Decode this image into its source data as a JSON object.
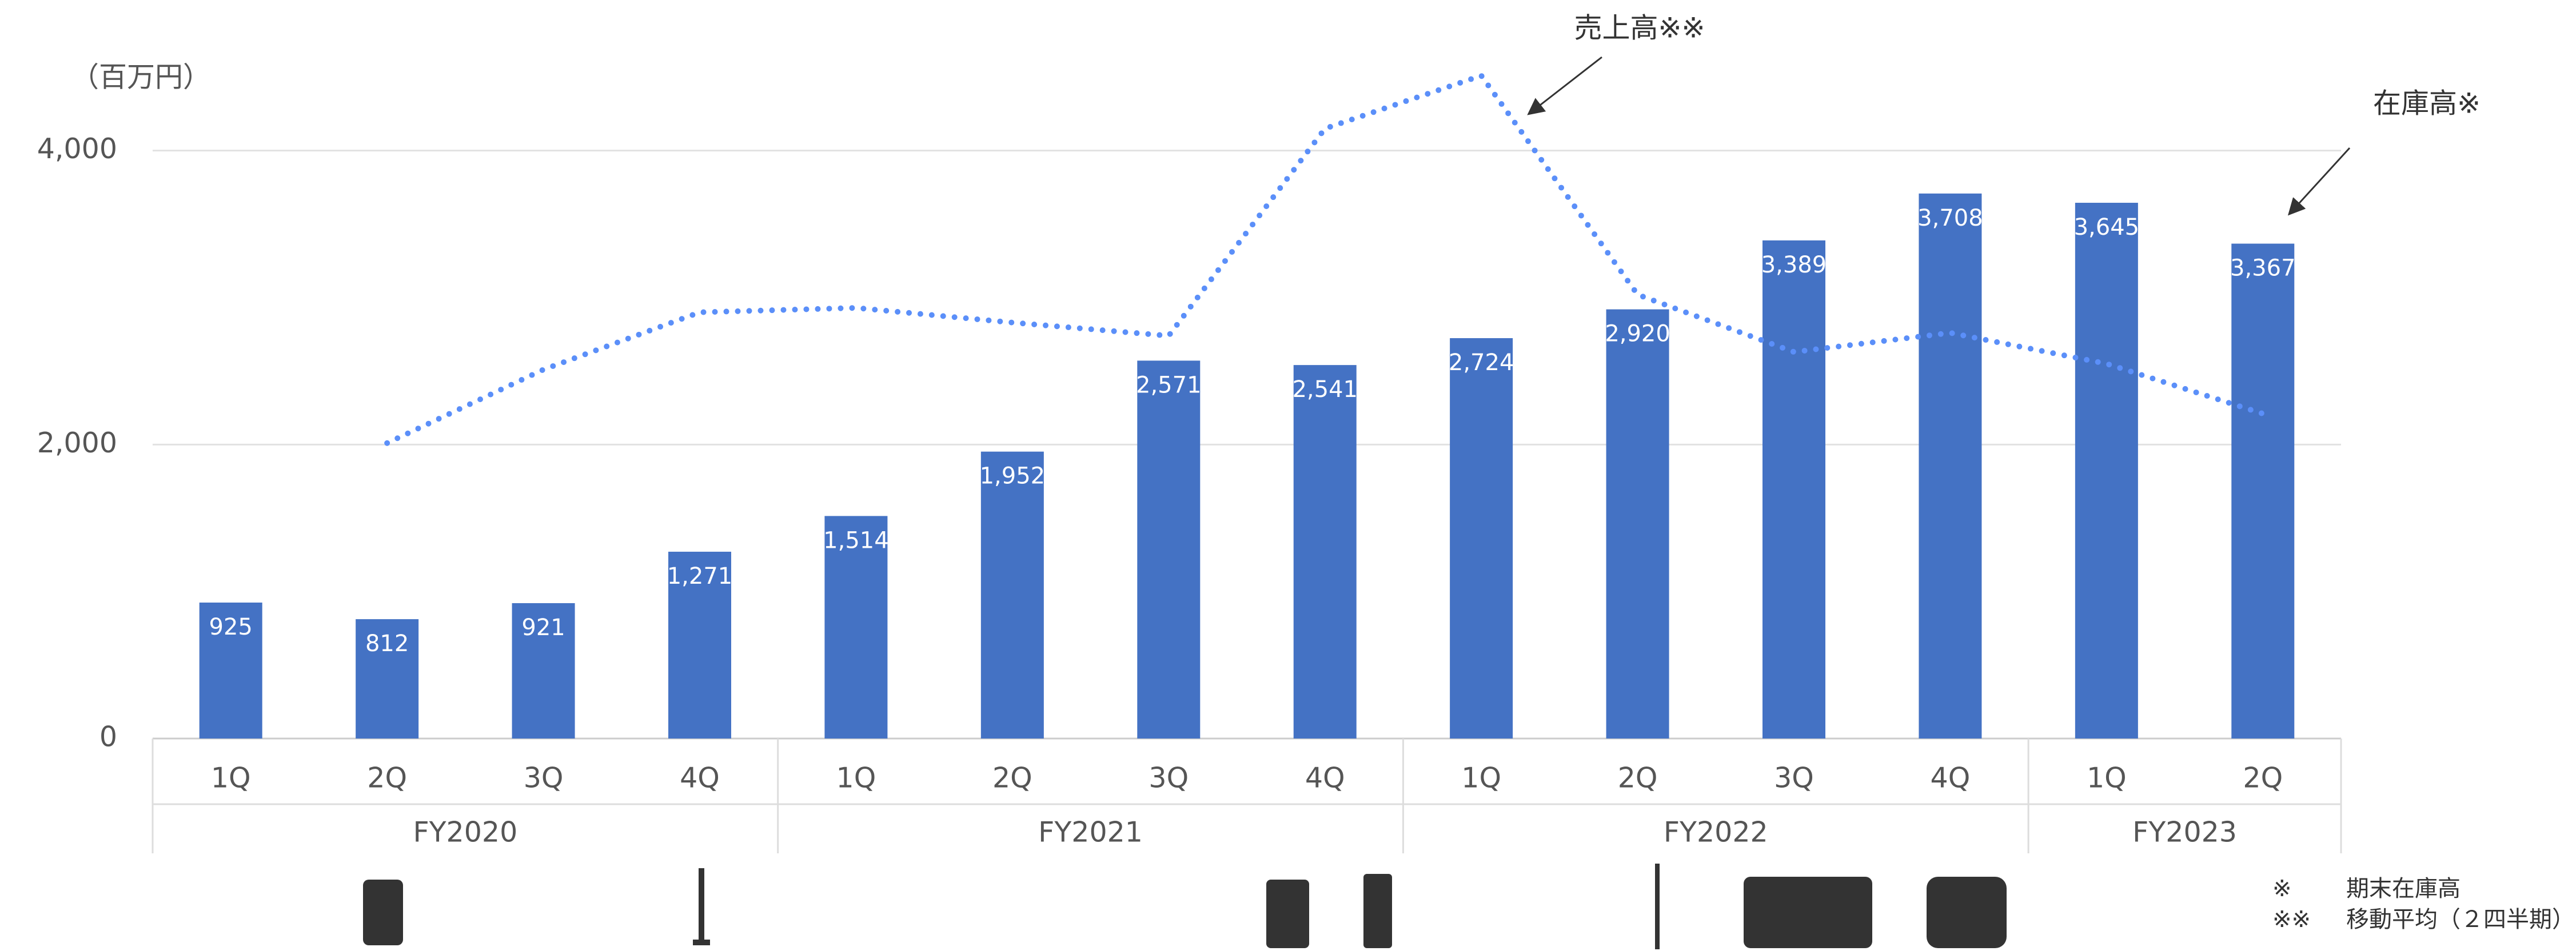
{
  "chart_data": {
    "type": "bar",
    "unit_label": "（百万円）",
    "groups": [
      {
        "name": "FY2020",
        "categories": [
          "1Q",
          "2Q",
          "3Q",
          "4Q"
        ]
      },
      {
        "name": "FY2021",
        "categories": [
          "1Q",
          "2Q",
          "3Q",
          "4Q"
        ]
      },
      {
        "name": "FY2022",
        "categories": [
          "1Q",
          "2Q",
          "3Q",
          "4Q"
        ]
      },
      {
        "name": "FY2023",
        "categories": [
          "1Q",
          "2Q"
        ]
      }
    ],
    "series": [
      {
        "name": "在庫高※",
        "type": "bar",
        "color": "#4472c4",
        "values": [
          925,
          812,
          921,
          1271,
          1514,
          1952,
          2571,
          2541,
          2724,
          2920,
          3389,
          3708,
          3645,
          3367
        ],
        "value_labels": [
          "925",
          "812",
          "921",
          "1,271",
          "1,514",
          "1,952",
          "2,571",
          "2,541",
          "2,724",
          "2,920",
          "3,389",
          "3,708",
          "3,645",
          "3,367"
        ]
      },
      {
        "name": "売上高※※",
        "type": "line",
        "color": "#5b8ff9",
        "values": [
          null,
          2010,
          2510,
          2900,
          2930,
          2830,
          2740,
          4150,
          4510,
          3020,
          2630,
          2760,
          2550,
          2210
        ]
      }
    ],
    "ylim": [
      0,
      4500
    ],
    "yticks": [
      0,
      {
        "value": 2000,
        "label": "2,000"
      },
      {
        "value": 4000,
        "label": "4,000"
      }
    ],
    "grid": true,
    "footnotes": [
      {
        "mark": "※",
        "text": "期末在庫高"
      },
      {
        "mark": "※※",
        "text": "移動平均（２四半期）"
      }
    ]
  }
}
